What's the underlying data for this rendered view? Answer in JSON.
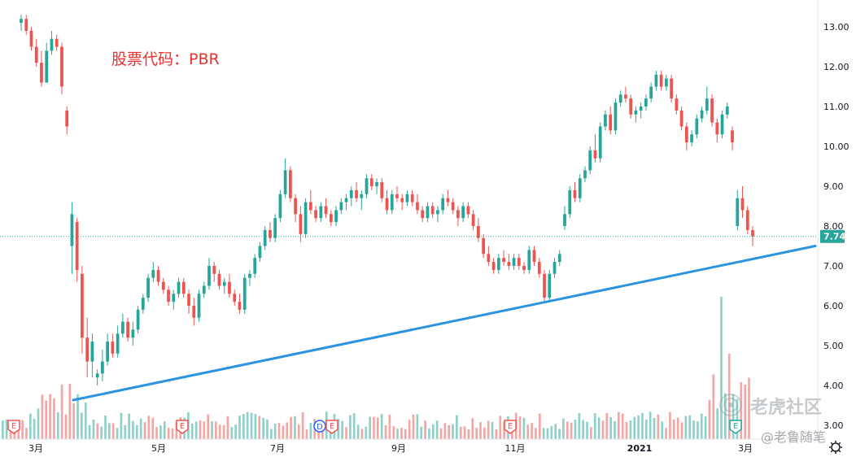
{
  "chart_data": {
    "type": "candlestick",
    "title": "股票代码：PBR",
    "ylim": [
      3.0,
      13.4
    ],
    "y_ticks": [
      "13.00",
      "12.00",
      "11.00",
      "10.00",
      "9.00",
      "8.00",
      "7.00",
      "6.00",
      "5.00",
      "4.00",
      "3.00"
    ],
    "x_ticks": [
      "3月",
      "5月",
      "7月",
      "9月",
      "11月",
      "2021",
      "3月"
    ],
    "last_price": "7.74",
    "trendline": {
      "from": {
        "x": "3月下",
        "y": 4.0
      },
      "to": {
        "x": "3月末",
        "y": 7.5
      }
    },
    "candles": [
      [
        13.1,
        13.3,
        12.9,
        13.2
      ],
      [
        13.2,
        13.3,
        12.8,
        12.9
      ],
      [
        12.9,
        13.0,
        12.4,
        12.5
      ],
      [
        12.5,
        12.7,
        12.0,
        12.1
      ],
      [
        12.1,
        12.4,
        11.5,
        11.6
      ],
      [
        11.6,
        12.6,
        11.6,
        12.4
      ],
      [
        12.4,
        12.9,
        12.3,
        12.7
      ],
      [
        12.7,
        12.8,
        12.4,
        12.5
      ],
      [
        12.5,
        12.6,
        11.3,
        11.5
      ],
      [
        10.9,
        11.0,
        10.3,
        10.5
      ],
      [
        7.5,
        8.6,
        6.8,
        8.3
      ],
      [
        8.1,
        8.2,
        6.6,
        6.9
      ],
      [
        6.8,
        7.0,
        4.8,
        5.2
      ],
      [
        5.2,
        5.7,
        4.2,
        4.6
      ],
      [
        4.6,
        5.3,
        4.2,
        5.1
      ],
      [
        4.2,
        4.4,
        4.0,
        4.3
      ],
      [
        4.3,
        4.9,
        4.1,
        4.6
      ],
      [
        4.6,
        5.3,
        4.5,
        5.1
      ],
      [
        5.1,
        5.3,
        4.7,
        4.8
      ],
      [
        4.8,
        5.5,
        4.7,
        5.3
      ],
      [
        5.3,
        5.8,
        5.2,
        5.6
      ],
      [
        5.6,
        5.7,
        5.1,
        5.2
      ],
      [
        5.2,
        5.6,
        5.0,
        5.4
      ],
      [
        5.4,
        6.0,
        5.3,
        5.9
      ],
      [
        5.9,
        6.3,
        5.8,
        6.2
      ],
      [
        6.2,
        6.8,
        6.1,
        6.7
      ],
      [
        6.7,
        7.1,
        6.6,
        6.9
      ],
      [
        6.9,
        7.0,
        6.5,
        6.6
      ],
      [
        6.6,
        6.7,
        6.3,
        6.4
      ],
      [
        6.4,
        6.5,
        6.0,
        6.1
      ],
      [
        6.1,
        6.4,
        5.9,
        6.3
      ],
      [
        6.3,
        6.7,
        6.2,
        6.6
      ],
      [
        6.6,
        6.7,
        6.2,
        6.3
      ],
      [
        6.3,
        6.4,
        5.8,
        6.0
      ],
      [
        6.0,
        6.2,
        5.5,
        5.7
      ],
      [
        5.7,
        6.4,
        5.6,
        6.3
      ],
      [
        6.3,
        6.6,
        6.2,
        6.5
      ],
      [
        6.5,
        7.2,
        6.4,
        7.0
      ],
      [
        7.0,
        7.1,
        6.6,
        6.8
      ],
      [
        6.8,
        6.9,
        6.4,
        6.5
      ],
      [
        6.5,
        6.7,
        6.3,
        6.6
      ],
      [
        6.6,
        6.8,
        6.2,
        6.3
      ],
      [
        6.3,
        6.4,
        6.0,
        6.1
      ],
      [
        6.1,
        6.3,
        5.8,
        5.9
      ],
      [
        5.9,
        6.8,
        5.8,
        6.7
      ],
      [
        6.7,
        6.9,
        6.5,
        6.8
      ],
      [
        6.8,
        7.3,
        6.7,
        7.2
      ],
      [
        7.2,
        7.6,
        7.1,
        7.5
      ],
      [
        7.5,
        8.0,
        7.4,
        7.9
      ],
      [
        7.9,
        8.1,
        7.6,
        7.7
      ],
      [
        7.7,
        8.3,
        7.6,
        8.2
      ],
      [
        8.2,
        8.9,
        8.1,
        8.8
      ],
      [
        8.8,
        9.7,
        8.7,
        9.4
      ],
      [
        9.4,
        9.5,
        8.6,
        8.7
      ],
      [
        8.7,
        8.8,
        8.1,
        8.3
      ],
      [
        8.3,
        8.5,
        7.6,
        7.8
      ],
      [
        7.8,
        8.7,
        7.7,
        8.6
      ],
      [
        8.6,
        8.9,
        8.3,
        8.4
      ],
      [
        8.4,
        8.5,
        8.1,
        8.2
      ],
      [
        8.2,
        8.6,
        8.1,
        8.5
      ],
      [
        8.5,
        8.7,
        8.2,
        8.3
      ],
      [
        8.3,
        8.4,
        8.0,
        8.1
      ],
      [
        8.1,
        8.5,
        8.0,
        8.4
      ],
      [
        8.4,
        8.7,
        8.3,
        8.6
      ],
      [
        8.6,
        8.8,
        8.4,
        8.7
      ],
      [
        8.7,
        9.0,
        8.5,
        8.9
      ],
      [
        8.9,
        9.1,
        8.6,
        8.7
      ],
      [
        8.7,
        8.9,
        8.4,
        8.8
      ],
      [
        8.8,
        9.3,
        8.7,
        9.2
      ],
      [
        9.2,
        9.3,
        8.9,
        9.0
      ],
      [
        9.0,
        9.2,
        8.8,
        9.1
      ],
      [
        9.1,
        9.2,
        8.6,
        8.7
      ],
      [
        8.7,
        8.9,
        8.3,
        8.4
      ],
      [
        8.4,
        8.9,
        8.3,
        8.8
      ],
      [
        8.8,
        9.0,
        8.6,
        8.7
      ],
      [
        8.7,
        8.8,
        8.4,
        8.6
      ],
      [
        8.6,
        8.9,
        8.5,
        8.8
      ],
      [
        8.8,
        8.9,
        8.5,
        8.6
      ],
      [
        8.6,
        8.8,
        8.3,
        8.4
      ],
      [
        8.4,
        8.5,
        8.1,
        8.2
      ],
      [
        8.2,
        8.6,
        8.1,
        8.5
      ],
      [
        8.5,
        8.6,
        8.2,
        8.3
      ],
      [
        8.3,
        8.5,
        8.1,
        8.4
      ],
      [
        8.4,
        8.8,
        8.3,
        8.7
      ],
      [
        8.7,
        8.9,
        8.5,
        8.6
      ],
      [
        8.6,
        8.7,
        8.3,
        8.4
      ],
      [
        8.4,
        8.5,
        8.0,
        8.2
      ],
      [
        8.2,
        8.6,
        8.1,
        8.5
      ],
      [
        8.5,
        8.6,
        8.2,
        8.3
      ],
      [
        8.3,
        8.4,
        7.9,
        8.0
      ],
      [
        8.0,
        8.2,
        7.6,
        7.7
      ],
      [
        7.7,
        7.8,
        7.2,
        7.3
      ],
      [
        7.3,
        7.5,
        7.0,
        7.1
      ],
      [
        7.1,
        7.2,
        6.8,
        6.9
      ],
      [
        6.9,
        7.3,
        6.8,
        7.2
      ],
      [
        7.2,
        7.4,
        7.0,
        7.1
      ],
      [
        7.1,
        7.3,
        6.9,
        7.0
      ],
      [
        7.0,
        7.3,
        6.9,
        7.2
      ],
      [
        7.2,
        7.3,
        6.9,
        7.0
      ],
      [
        7.0,
        7.1,
        6.8,
        6.9
      ],
      [
        6.9,
        7.5,
        6.8,
        7.4
      ],
      [
        7.4,
        7.5,
        7.0,
        7.1
      ],
      [
        7.1,
        7.2,
        6.7,
        6.8
      ],
      [
        6.8,
        6.9,
        6.1,
        6.2
      ],
      [
        6.2,
        6.9,
        6.1,
        6.8
      ],
      [
        6.8,
        7.2,
        6.7,
        7.1
      ],
      [
        7.1,
        7.4,
        7.0,
        7.3
      ],
      [
        8.0,
        8.5,
        7.9,
        8.3
      ],
      [
        8.3,
        9.0,
        8.2,
        8.9
      ],
      [
        8.9,
        9.1,
        8.6,
        8.7
      ],
      [
        8.7,
        9.3,
        8.6,
        9.2
      ],
      [
        9.2,
        9.5,
        9.1,
        9.4
      ],
      [
        9.4,
        10.0,
        9.3,
        9.9
      ],
      [
        9.9,
        10.3,
        9.6,
        9.7
      ],
      [
        9.7,
        10.6,
        9.6,
        10.5
      ],
      [
        10.5,
        10.9,
        10.4,
        10.8
      ],
      [
        10.8,
        11.0,
        10.3,
        10.4
      ],
      [
        10.4,
        11.2,
        10.3,
        11.1
      ],
      [
        11.1,
        11.4,
        11.0,
        11.3
      ],
      [
        11.3,
        11.5,
        11.1,
        11.2
      ],
      [
        11.2,
        11.3,
        10.7,
        10.8
      ],
      [
        10.8,
        11.0,
        10.6,
        10.9
      ],
      [
        10.9,
        11.1,
        10.7,
        11.0
      ],
      [
        11.0,
        11.3,
        10.9,
        11.2
      ],
      [
        11.2,
        11.6,
        11.1,
        11.5
      ],
      [
        11.5,
        11.9,
        11.4,
        11.8
      ],
      [
        11.8,
        11.9,
        11.4,
        11.5
      ],
      [
        11.5,
        11.8,
        11.4,
        11.7
      ],
      [
        11.7,
        11.8,
        11.1,
        11.2
      ],
      [
        11.2,
        11.3,
        10.8,
        10.9
      ],
      [
        10.9,
        11.0,
        10.4,
        10.5
      ],
      [
        10.5,
        10.6,
        9.9,
        10.1
      ],
      [
        10.1,
        10.4,
        10.0,
        10.3
      ],
      [
        10.3,
        10.8,
        10.2,
        10.7
      ],
      [
        10.7,
        11.0,
        10.6,
        10.9
      ],
      [
        10.9,
        11.5,
        10.8,
        11.2
      ],
      [
        11.2,
        11.3,
        10.5,
        10.6
      ],
      [
        10.6,
        10.7,
        10.1,
        10.3
      ],
      [
        10.3,
        10.9,
        10.2,
        10.8
      ],
      [
        10.8,
        11.1,
        10.7,
        11.0
      ],
      [
        10.4,
        10.5,
        9.9,
        10.1
      ],
      [
        8.0,
        8.9,
        7.9,
        8.7
      ],
      [
        8.7,
        9.0,
        8.2,
        8.4
      ],
      [
        8.4,
        8.5,
        7.8,
        7.9
      ],
      [
        7.9,
        8.0,
        7.5,
        7.74
      ]
    ],
    "volume_events": [
      "E",
      "E",
      "D",
      "E",
      "E",
      "E"
    ]
  },
  "watermark": {
    "brand": "老虎社区",
    "author": "@老鲁随笔"
  },
  "colors": {
    "up": "#26a69a",
    "down": "#ef5350",
    "trendline": "#2c93e0",
    "price_label_bg": "#26a69a",
    "title": "#e8322e"
  },
  "icons": {
    "settings": "gear-icon"
  }
}
